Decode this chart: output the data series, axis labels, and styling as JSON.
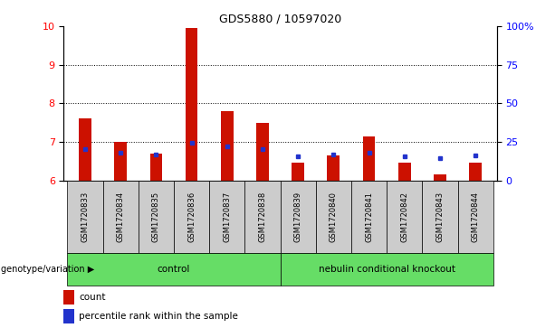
{
  "title": "GDS5880 / 10597020",
  "samples": [
    "GSM1720833",
    "GSM1720834",
    "GSM1720835",
    "GSM1720836",
    "GSM1720837",
    "GSM1720838",
    "GSM1720839",
    "GSM1720840",
    "GSM1720841",
    "GSM1720842",
    "GSM1720843",
    "GSM1720844"
  ],
  "count_values": [
    7.6,
    7.0,
    6.7,
    9.95,
    7.8,
    7.5,
    6.45,
    6.65,
    7.15,
    6.45,
    6.15,
    6.45
  ],
  "percentile_values": [
    6.82,
    6.72,
    6.68,
    6.98,
    6.88,
    6.82,
    6.62,
    6.68,
    6.72,
    6.62,
    6.58,
    6.65
  ],
  "ylim_left": [
    6,
    10
  ],
  "yticks_left": [
    6,
    7,
    8,
    9,
    10
  ],
  "ylim_right": [
    0,
    100
  ],
  "yticks_right": [
    0,
    25,
    50,
    75,
    100
  ],
  "yticklabels_right": [
    "0",
    "25",
    "50",
    "75",
    "100%"
  ],
  "groups": [
    {
      "label": "control",
      "n": 6,
      "color": "#66dd66"
    },
    {
      "label": "nebulin conditional knockout",
      "n": 6,
      "color": "#66dd66"
    }
  ],
  "group_label": "genotype/variation",
  "bar_color": "#cc1100",
  "percentile_color": "#2233cc",
  "legend_items": [
    {
      "label": "count",
      "color": "#cc1100"
    },
    {
      "label": "percentile rank within the sample",
      "color": "#2233cc"
    }
  ],
  "grid_yticks": [
    7,
    8,
    9
  ],
  "bar_width": 0.35,
  "background_color": "#ffffff",
  "tick_area_bg": "#cccccc",
  "n_control": 6,
  "title_fontsize": 9
}
